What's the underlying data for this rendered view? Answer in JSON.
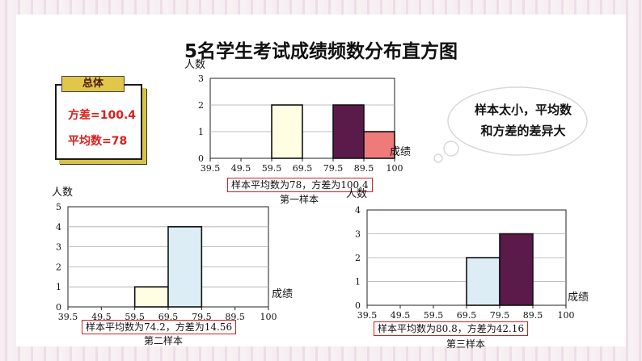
{
  "title": "5名学生考试成绩频数分布直方图",
  "overall": {
    "header": "总体",
    "variance": "方差=100.4",
    "mean": "平均数=78"
  },
  "callout": {
    "line1": "样本太小，平均数",
    "line2": "和方差的差异大"
  },
  "colors": {
    "cream": "#fffde2",
    "purple": "#5a1a4a",
    "pink": "#ee7a7a",
    "lightblue": "#dcedf5",
    "red": "#d42020"
  },
  "chart_data": [
    {
      "type": "bar",
      "name": "第一样本",
      "ylabel": "人数",
      "xlabel": "成绩",
      "x_ticks": [
        "39.5",
        "49.5",
        "59.5",
        "69.5",
        "79.5",
        "89.5",
        "100"
      ],
      "y_ticks": [
        "0",
        "1",
        "2",
        "3"
      ],
      "ylim": [
        0,
        3
      ],
      "bins": [
        {
          "from": "59.5",
          "to": "69.5",
          "value": 2,
          "color": "cream"
        },
        {
          "from": "79.5",
          "to": "89.5",
          "value": 2,
          "color": "purple"
        },
        {
          "from": "89.5",
          "to": "100",
          "value": 1,
          "color": "pink"
        }
      ],
      "caption": "样本平均数为78，方差为100.4",
      "sample_label": "第一样本"
    },
    {
      "type": "bar",
      "name": "第二样本",
      "ylabel": "人数",
      "xlabel": "成绩",
      "x_ticks": [
        "39.5",
        "49.5",
        "59.5",
        "69.5",
        "79.5",
        "89.5",
        "100"
      ],
      "y_ticks": [
        "0",
        "1",
        "2",
        "3",
        "4",
        "5"
      ],
      "ylim": [
        0,
        5
      ],
      "bins": [
        {
          "from": "59.5",
          "to": "69.5",
          "value": 1,
          "color": "cream"
        },
        {
          "from": "69.5",
          "to": "79.5",
          "value": 4,
          "color": "lightblue"
        }
      ],
      "caption": "样本平均数为74.2，方差为14.56",
      "sample_label": "第二样本"
    },
    {
      "type": "bar",
      "name": "第三样本",
      "ylabel": "人数",
      "xlabel": "成绩",
      "x_ticks": [
        "39.5",
        "49.5",
        "59.5",
        "69.5",
        "79.5",
        "89.5",
        "100"
      ],
      "y_ticks": [
        "0",
        "1",
        "2",
        "3",
        "4"
      ],
      "ylim": [
        0,
        4
      ],
      "bins": [
        {
          "from": "69.5",
          "to": "79.5",
          "value": 2,
          "color": "lightblue"
        },
        {
          "from": "79.5",
          "to": "89.5",
          "value": 3,
          "color": "purple"
        }
      ],
      "caption": "样本平均数为80.8，方差为42.16",
      "sample_label": "第三样本"
    }
  ]
}
